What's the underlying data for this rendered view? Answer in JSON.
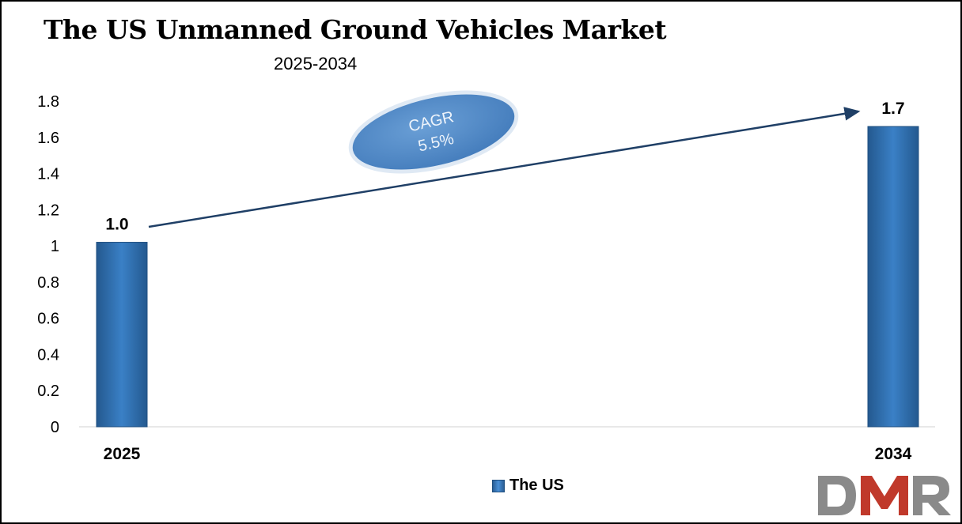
{
  "chart_data": {
    "type": "bar",
    "title": "The US Unmanned Ground Vehicles Market",
    "subtitle": "2025-2034",
    "categories": [
      "2025",
      "2034"
    ],
    "series": [
      {
        "name": "The US",
        "values": [
          1.0,
          1.7
        ],
        "labels": [
          "1.0",
          "1.7"
        ]
      }
    ],
    "plotted_values": [
      1.02,
      1.66
    ],
    "ylim": [
      0,
      1.8
    ],
    "yticks": [
      "0",
      "0.2",
      "0.4",
      "0.6",
      "0.8",
      "1",
      "1.2",
      "1.4",
      "1.6",
      "1.8"
    ],
    "grid": false,
    "legend_position": "bottom",
    "annotation": {
      "line1": "CAGR",
      "line2": "5.5%"
    },
    "colors": {
      "bar": "#2e6fb3",
      "bar_edge": "#1f4f80",
      "arrow": "#1f3f66",
      "ellipse": "#4a86c8",
      "ellipse_edge": "#dfe9f4"
    }
  },
  "logo": {
    "text": "DMR",
    "color_d": "#8a8a8a",
    "color_m": "#c0392b",
    "color_r": "#8a8a8a"
  }
}
